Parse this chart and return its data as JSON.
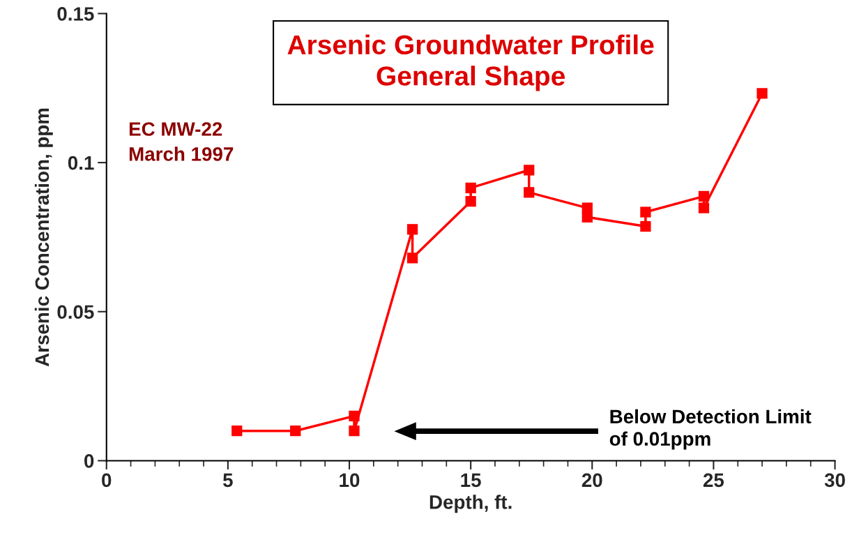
{
  "chart_data": {
    "type": "line",
    "title": "Arsenic Groundwater Profile\nGeneral Shape",
    "xlabel": "Depth, ft.",
    "ylabel": "Arsenic Concentration, ppm",
    "series": [
      {
        "color": "#ff0000",
        "x": [
          5.37,
          7.78,
          10.2,
          10.2,
          12.6,
          12.6,
          15.0,
          15.0,
          17.4,
          17.4,
          19.8,
          19.8,
          22.2,
          22.2,
          24.6,
          24.6,
          27.0
        ],
        "values": [
          0.01,
          0.01,
          0.015,
          0.01,
          0.0776,
          0.068,
          0.087,
          0.0915,
          0.0975,
          0.09,
          0.0848,
          0.0817,
          0.0786,
          0.0834,
          0.0887,
          0.0848,
          0.1232
        ]
      }
    ],
    "marker": "square",
    "line_style": "solid",
    "grid": false,
    "legend": false,
    "xlim": [
      0,
      30
    ],
    "xticks": [
      0,
      5,
      10,
      15,
      20,
      25,
      30
    ],
    "ylim": [
      0,
      0.15
    ],
    "yticks": [
      0,
      0.05,
      {
        "value": 0.1,
        "label": "0.1"
      },
      0.15
    ],
    "annotations": [
      "EC MW-22\nMarch 1997",
      "Below Detection Limit\nof 0.01ppm"
    ]
  }
}
